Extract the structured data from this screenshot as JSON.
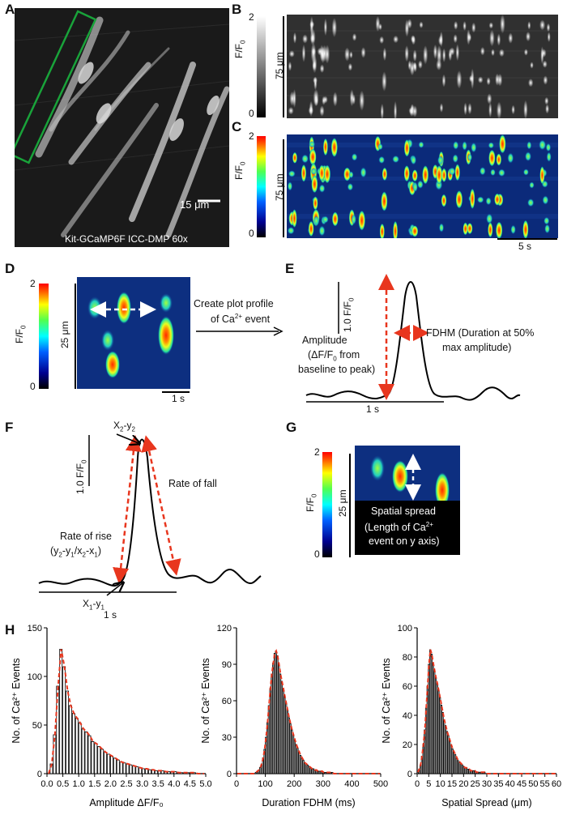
{
  "panels": {
    "A": {
      "label": "A",
      "caption": "Kit-GCaMP6F ICC-DMP 60x",
      "scale": "15 μm"
    },
    "B": {
      "label": "B",
      "cb_top": "2",
      "cb_bottom": "0",
      "cb_title": "F/F",
      "cb_sub": "0",
      "space": "75 μm"
    },
    "C": {
      "label": "C",
      "cb_top": "2",
      "cb_bottom": "0",
      "cb_title": "F/F",
      "cb_sub": "0",
      "space": "75 μm",
      "time": "5 s"
    },
    "D": {
      "label": "D",
      "cb_top": "2",
      "cb_bottom": "0",
      "cb_title": "F/F",
      "cb_sub": "0",
      "space": "25 μm",
      "time": "1 s",
      "arrow_text_1": "Create plot profile",
      "arrow_text_2": "of Ca",
      "arrow_sup": "2+",
      "arrow_text_3": " event"
    },
    "E": {
      "label": "E",
      "yscale": "1.0 F/F",
      "yscale_sub": "0",
      "amp_1": "Amplitude",
      "amp_2": "(ΔF/F",
      "amp_2_sub": "0",
      "amp_2_end": " from",
      "amp_3": "baseline to peak)",
      "fdhm_1": "FDHM (Duration at 50%",
      "fdhm_2": "max amplitude)",
      "time": "1 s"
    },
    "F": {
      "label": "F",
      "yscale": "1.0 F/F",
      "yscale_sub": "0",
      "peak": "X",
      "peak_s1": "2",
      "peak_mid": "-y",
      "peak_s2": "2",
      "base": "X",
      "base_s1": "1",
      "base_mid": "-y",
      "base_s2": "1",
      "rise_1": "Rate of rise",
      "rise_2": "(y",
      "fall": "Rate of fall",
      "time": "1 s"
    },
    "G": {
      "label": "G",
      "cb_top": "2",
      "cb_bottom": "0",
      "cb_title": "F/F",
      "cb_sub": "0",
      "space": "25 μm",
      "box_1": "Spatial spread",
      "box_2": "(Length of Ca",
      "box_sup": "2+",
      "box_3": "event on y axis)"
    },
    "H": {
      "label": "H",
      "ylabel": "No. of Ca",
      "ylabel_sup": "2+",
      "ylabel_end": " Events"
    }
  },
  "chart_data": [
    {
      "type": "bar",
      "title": "",
      "xlabel": "Amplitude ΔF/F0",
      "ylabel": "No. of Ca2+ Events",
      "xlim": [
        0,
        5.0
      ],
      "ylim": [
        0,
        150
      ],
      "xticks": [
        "0.0",
        "0.5",
        "1.0",
        "1.5",
        "2.0",
        "2.5",
        "3.0",
        "3.5",
        "4.0",
        "4.5",
        "5.0"
      ],
      "yticks": [
        "0",
        "50",
        "100",
        "150"
      ],
      "bin_width": 0.1,
      "values": [
        0,
        10,
        40,
        90,
        128,
        110,
        85,
        70,
        62,
        57,
        52,
        46,
        43,
        39,
        33,
        31,
        28,
        25,
        22,
        20,
        18,
        16,
        14,
        12,
        11,
        10,
        9,
        8,
        7,
        6,
        5,
        5,
        4,
        4,
        3,
        3,
        3,
        2,
        2,
        2,
        2,
        1,
        1,
        1,
        1,
        1,
        1,
        0,
        0,
        0
      ],
      "fit": "log-normal (red dashed)"
    },
    {
      "type": "bar",
      "title": "",
      "xlabel": "Duration FDHM (ms)",
      "ylabel": "No. of Ca2+ Events",
      "xlim": [
        0,
        500
      ],
      "ylim": [
        0,
        120
      ],
      "xticks": [
        "0",
        "100",
        "200",
        "300",
        "400",
        "500"
      ],
      "yticks": [
        "0",
        "30",
        "60",
        "90",
        "120"
      ],
      "bin_width": 5,
      "values": [
        0,
        0,
        0,
        0,
        0,
        0,
        0,
        0,
        0,
        0,
        0,
        0,
        0,
        1,
        2,
        3,
        5,
        8,
        13,
        20,
        30,
        42,
        56,
        70,
        82,
        91,
        99,
        101,
        97,
        90,
        82,
        76,
        70,
        64,
        58,
        52,
        46,
        41,
        36,
        32,
        28,
        24,
        21,
        18,
        15,
        13,
        11,
        9,
        8,
        7,
        6,
        5,
        4,
        4,
        3,
        3,
        2,
        2,
        2,
        2,
        1,
        1,
        1,
        1,
        1,
        1,
        1,
        0,
        0,
        0,
        0,
        0,
        0,
        0,
        0,
        0,
        0,
        0,
        0,
        0,
        0,
        0,
        0,
        0,
        0,
        0,
        0,
        0,
        0,
        0,
        0,
        0,
        0,
        0,
        0,
        0,
        0,
        0,
        0,
        0
      ],
      "fit": "log-normal (red dashed)"
    },
    {
      "type": "bar",
      "title": "",
      "xlabel": "Spatial Spread (μm)",
      "ylabel": "No. of Ca2+ Events",
      "xlim": [
        0,
        60
      ],
      "ylim": [
        0,
        100
      ],
      "xticks": [
        "0",
        "5",
        "10",
        "15",
        "20",
        "25",
        "30",
        "35",
        "40",
        "45",
        "50",
        "55",
        "60"
      ],
      "yticks": [
        "0",
        "20",
        "40",
        "60",
        "80",
        "100"
      ],
      "bin_width": 0.6,
      "values": [
        1,
        3,
        6,
        12,
        20,
        30,
        45,
        60,
        75,
        85,
        82,
        76,
        71,
        66,
        62,
        57,
        52,
        47,
        42,
        37,
        33,
        29,
        26,
        23,
        20,
        17,
        15,
        13,
        11,
        9,
        8,
        7,
        6,
        5,
        4,
        4,
        3,
        3,
        2,
        2,
        2,
        2,
        1,
        1,
        1,
        1,
        1,
        1,
        1,
        0,
        0,
        0,
        0,
        0,
        0,
        0,
        0,
        0,
        0,
        0,
        0,
        0,
        0,
        0,
        0,
        0,
        0,
        0,
        0,
        0,
        0,
        0,
        0,
        0,
        0,
        0,
        0,
        0,
        0,
        0,
        0,
        0,
        0,
        0,
        0,
        0,
        0,
        0,
        0,
        0,
        0,
        0,
        0,
        0,
        0,
        0,
        0,
        0,
        0,
        0
      ],
      "fit": "log-normal (red dashed)"
    }
  ]
}
